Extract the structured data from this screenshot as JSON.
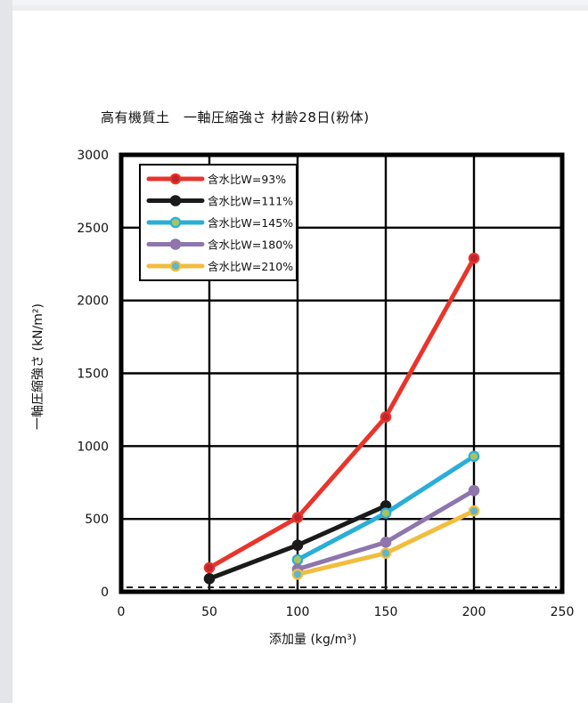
{
  "chart_data": {
    "type": "line",
    "title": "高有機質土　一軸圧縮強さ 材齢28日(粉体)",
    "xlabel": "添加量 (kg/m³)",
    "ylabel": "一軸圧縮強さ (kN/m²)",
    "xlim": [
      0,
      250
    ],
    "ylim": [
      0,
      3000
    ],
    "xticks": [
      "0",
      "50",
      "100",
      "150",
      "200",
      "250"
    ],
    "yticks": [
      "0",
      "500",
      "1000",
      "1500",
      "2000",
      "2500",
      "3000"
    ],
    "grid": true,
    "legend_position": "top-left",
    "series": [
      {
        "name": "含水比W=93%",
        "color": "#e8352b",
        "marker_fill": "#c0262d",
        "x": [
          50,
          100,
          150,
          200
        ],
        "y": [
          165,
          510,
          1200,
          2290
        ]
      },
      {
        "name": "含水比W=111%",
        "color": "#1a1a1a",
        "marker_fill": "#1a1a1a",
        "x": [
          50,
          100,
          150
        ],
        "y": [
          90,
          320,
          590
        ]
      },
      {
        "name": "含水比W=145%",
        "color": "#2aaed8",
        "marker_fill": "#a8c460",
        "x": [
          100,
          150,
          200
        ],
        "y": [
          220,
          540,
          930
        ]
      },
      {
        "name": "含水比W=180%",
        "color": "#8e76ac",
        "marker_fill": "#8e76ac",
        "x": [
          100,
          150,
          200
        ],
        "y": [
          155,
          340,
          695
        ]
      },
      {
        "name": "含水比W=210%",
        "color": "#f2bd3e",
        "marker_fill": "#5db7c9",
        "x": [
          100,
          150,
          200
        ],
        "y": [
          120,
          265,
          555
        ]
      }
    ]
  }
}
